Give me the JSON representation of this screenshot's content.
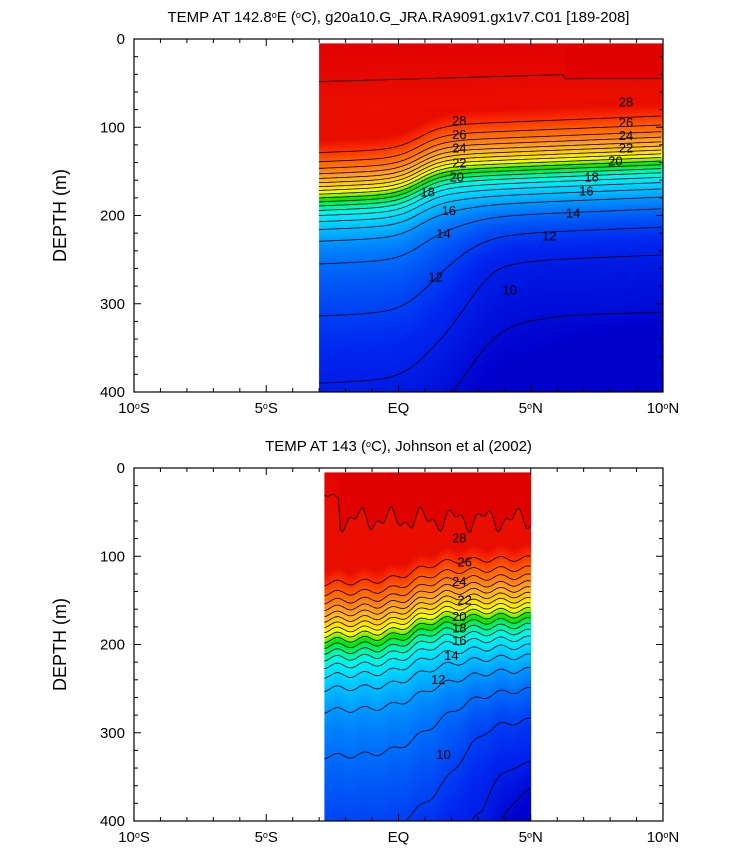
{
  "chart_data": [
    {
      "type": "contour",
      "title_parts": [
        "TEMP AT 142.8",
        "o",
        "E (",
        "o",
        "C), g20a10.G_JRA.RA9091.gx1v7.C01 [189-208]"
      ],
      "ylabel": "DEPTH (m)",
      "xlabel": "",
      "x_ticks": [
        -10,
        -5,
        0,
        5,
        10
      ],
      "x_tick_labels": [
        {
          "num": "10",
          "deg": "o",
          "hem": "S"
        },
        {
          "num": "5",
          "deg": "o",
          "hem": "S"
        },
        {
          "num": "EQ",
          "deg": "",
          "hem": ""
        },
        {
          "num": "5",
          "deg": "o",
          "hem": "N"
        },
        {
          "num": "10",
          "deg": "o",
          "hem": "N"
        }
      ],
      "y_ticks": [
        "0",
        "100",
        "200",
        "300",
        "400"
      ],
      "xlim": [
        -10,
        10
      ],
      "ylim": [
        0,
        400
      ],
      "y_reversed": true,
      "data_x_range": [
        -3.0,
        10.0
      ],
      "data_depth_range": [
        5,
        400
      ],
      "contour_interval": 1,
      "contour_labels": [
        {
          "value": "28",
          "lon": 2.3,
          "depth": 93
        },
        {
          "value": "26",
          "lon": 2.3,
          "depth": 109
        },
        {
          "value": "24",
          "lon": 2.3,
          "depth": 124
        },
        {
          "value": "22",
          "lon": 2.3,
          "depth": 141
        },
        {
          "value": "20",
          "lon": 2.2,
          "depth": 157
        },
        {
          "value": "18",
          "lon": 1.1,
          "depth": 174
        },
        {
          "value": "16",
          "lon": 1.9,
          "depth": 195
        },
        {
          "value": "14",
          "lon": 1.7,
          "depth": 221
        },
        {
          "value": "12",
          "lon": 1.4,
          "depth": 270
        },
        {
          "value": "28",
          "lon": 8.6,
          "depth": 72
        },
        {
          "value": "26",
          "lon": 8.6,
          "depth": 95
        },
        {
          "value": "24",
          "lon": 8.6,
          "depth": 110
        },
        {
          "value": "22",
          "lon": 8.6,
          "depth": 124
        },
        {
          "value": "20",
          "lon": 8.2,
          "depth": 139
        },
        {
          "value": "18",
          "lon": 7.3,
          "depth": 157
        },
        {
          "value": "16",
          "lon": 7.1,
          "depth": 173
        },
        {
          "value": "14",
          "lon": 6.6,
          "depth": 198
        },
        {
          "value": "12",
          "lon": 5.7,
          "depth": 224
        },
        {
          "value": "10",
          "lon": 4.2,
          "depth": 285
        }
      ]
    },
    {
      "type": "contour",
      "title_parts": [
        "TEMP AT 143 (",
        "o",
        "C), Johnson et al (2002)"
      ],
      "ylabel": "DEPTH (m)",
      "xlabel": "",
      "x_ticks": [
        -10,
        -5,
        0,
        5,
        10
      ],
      "x_tick_labels": [
        {
          "num": "10",
          "deg": "o",
          "hem": "S"
        },
        {
          "num": "5",
          "deg": "o",
          "hem": "S"
        },
        {
          "num": "EQ",
          "deg": "",
          "hem": ""
        },
        {
          "num": "5",
          "deg": "o",
          "hem": "N"
        },
        {
          "num": "10",
          "deg": "o",
          "hem": "N"
        }
      ],
      "y_ticks": [
        "0",
        "100",
        "200",
        "300",
        "400"
      ],
      "xlim": [
        -10,
        10
      ],
      "ylim": [
        0,
        400
      ],
      "y_reversed": true,
      "data_x_range": [
        -2.8,
        5.0
      ],
      "data_depth_range": [
        5,
        400
      ],
      "contour_interval": 1,
      "contour_labels": [
        {
          "value": "28",
          "lon": 2.3,
          "depth": 80
        },
        {
          "value": "26",
          "lon": 2.5,
          "depth": 107
        },
        {
          "value": "24",
          "lon": 2.3,
          "depth": 129
        },
        {
          "value": "22",
          "lon": 2.5,
          "depth": 150
        },
        {
          "value": "20",
          "lon": 2.3,
          "depth": 169
        },
        {
          "value": "18",
          "lon": 2.3,
          "depth": 182
        },
        {
          "value": "16",
          "lon": 2.3,
          "depth": 196
        },
        {
          "value": "14",
          "lon": 2.0,
          "depth": 213
        },
        {
          "value": "12",
          "lon": 1.5,
          "depth": 240
        },
        {
          "value": "10",
          "lon": 1.7,
          "depth": 325
        }
      ]
    }
  ]
}
